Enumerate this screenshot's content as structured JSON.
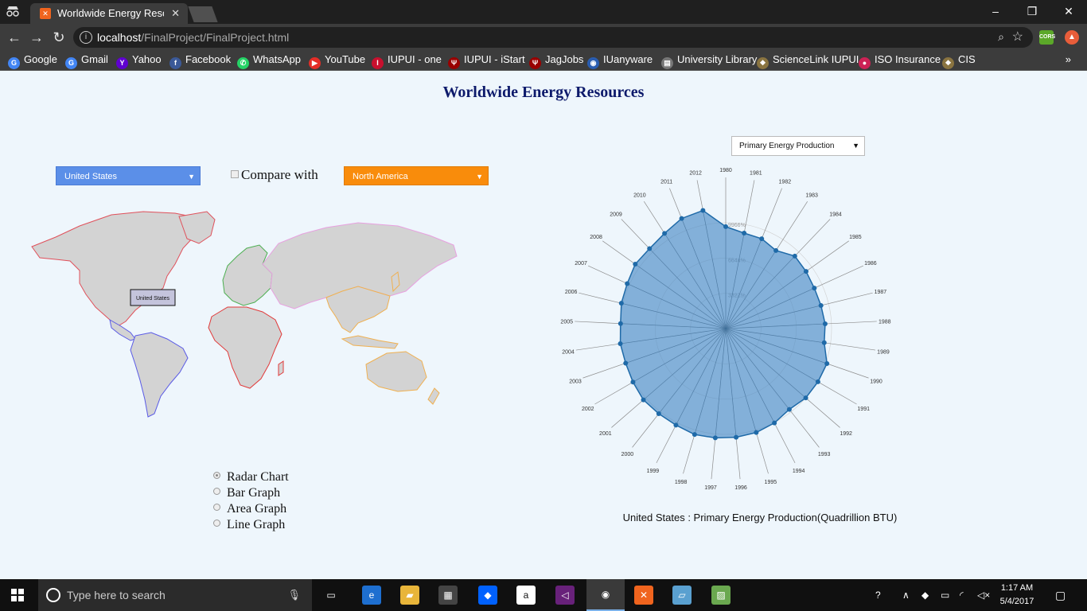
{
  "browser": {
    "tab_title": "Worldwide Energy Resou",
    "tab_close": "✕",
    "url_host": "localhost",
    "url_path": "/FinalProject/FinalProject.html",
    "window_controls": [
      "–",
      "❐",
      "✕"
    ],
    "ext1_label": "CORS",
    "bookmarks": [
      {
        "label": "Google",
        "icon": "G",
        "color": "#4285f4"
      },
      {
        "label": "Gmail",
        "icon": "G",
        "color": "#4285f4"
      },
      {
        "label": "Yahoo",
        "icon": "Y",
        "color": "#5f01d1"
      },
      {
        "label": "Facebook",
        "icon": "f",
        "color": "#3b5998"
      },
      {
        "label": "WhatsApp",
        "icon": "✆",
        "color": "#25d366"
      },
      {
        "label": "YouTube",
        "icon": "▶",
        "color": "#e52d27"
      },
      {
        "label": "IUPUI - one",
        "icon": "I",
        "color": "#c8102e"
      },
      {
        "label": "IUPUI - iStart",
        "icon": "Ψ",
        "color": "#990000"
      },
      {
        "label": "JagJobs",
        "icon": "Ψ",
        "color": "#990000"
      },
      {
        "label": "IUanyware",
        "icon": "◉",
        "color": "#2a5db0"
      },
      {
        "label": "University Library",
        "icon": "▤",
        "color": "#777"
      },
      {
        "label": "ScienceLink IUPUI",
        "icon": "❖",
        "color": "#8a7440"
      },
      {
        "label": "ISO Insurance",
        "icon": "●",
        "color": "#cc2255"
      },
      {
        "label": "CIS",
        "icon": "❖",
        "color": "#8a7440"
      }
    ],
    "bookmarks_more": "»"
  },
  "page": {
    "title": "Worldwide Energy Resources",
    "country_select": "United States",
    "compare_label": "Compare with",
    "region_select": "North America",
    "map_tooltip": "United States",
    "chart_types": [
      {
        "label": "Radar Chart",
        "checked": true
      },
      {
        "label": "Bar Graph",
        "checked": false
      },
      {
        "label": "Area Graph",
        "checked": false
      },
      {
        "label": "Line Graph",
        "checked": false
      }
    ],
    "metric_select": "Primary Energy Production",
    "caption": "United States : Primary Energy Production(Quadrillion BTU)"
  },
  "chart_data": {
    "type": "radar",
    "title": "United States : Primary Energy Production(Quadrillion BTU)",
    "ring_labels": [
      "9966%",
      "6644%",
      "3322%"
    ],
    "categories": [
      "1980",
      "1981",
      "1982",
      "1983",
      "1984",
      "1985",
      "1986",
      "1987",
      "1988",
      "1989",
      "1990",
      "1991",
      "1992",
      "1993",
      "1994",
      "1995",
      "1996",
      "1997",
      "1998",
      "1999",
      "2000",
      "2001",
      "2002",
      "2003",
      "2004",
      "2005",
      "2006",
      "2007",
      "2008",
      "2009",
      "2010",
      "2011",
      "2012"
    ],
    "series": [
      {
        "values": [
          67.2,
          64.1,
          63.8,
          61.2,
          66.0,
          65.0,
          64.2,
          64.6,
          65.6,
          65.6,
          70.6,
          70.2,
          69.8,
          67.8,
          70.0,
          71.4,
          72.0,
          72.4,
          72.8,
          71.6,
          71.4,
          71.8,
          70.6,
          69.8,
          70.2,
          69.4,
          70.8,
          71.4,
          73.2,
          72.8,
          74.6,
          78.2,
          79.3
        ]
      }
    ],
    "max": 99.66,
    "colors": {
      "fill": "#4a8bc6",
      "stroke": "#1f6aa8"
    }
  },
  "map_data": {
    "regions": [
      {
        "name": "North America",
        "color": "#e0505a"
      },
      {
        "name": "South America",
        "color": "#5a5ae6"
      },
      {
        "name": "Europe",
        "color": "#4caf50"
      },
      {
        "name": "Africa",
        "color": "#e23a3a"
      },
      {
        "name": "Middle East / Asia",
        "color": "#e8a0e0"
      },
      {
        "name": "Asia Pacific",
        "color": "#f0b050"
      }
    ]
  },
  "taskbar": {
    "search_placeholder": "Type here to search",
    "apps": [
      {
        "name": "task-view",
        "icon": "▭",
        "color": "transparent"
      },
      {
        "name": "edge",
        "icon": "e",
        "color": "#1e6fd0"
      },
      {
        "name": "file-explorer",
        "icon": "▰",
        "color": "#e8b53a"
      },
      {
        "name": "store",
        "icon": "▦",
        "color": "#444"
      },
      {
        "name": "dropbox",
        "icon": "◆",
        "color": "#0061fe"
      },
      {
        "name": "amazon",
        "icon": "a",
        "color": "#ffffff"
      },
      {
        "name": "visual-studio",
        "icon": "◁",
        "color": "#68217a"
      },
      {
        "name": "chrome",
        "icon": "◉",
        "color": "#d93025"
      },
      {
        "name": "xampp",
        "icon": "✕",
        "color": "#f0641e"
      },
      {
        "name": "notepad",
        "icon": "▱",
        "color": "#5aa0d0"
      },
      {
        "name": "editor",
        "icon": "▨",
        "color": "#6aa84f"
      }
    ],
    "time": "1:17 AM",
    "date": "5/4/2017"
  }
}
